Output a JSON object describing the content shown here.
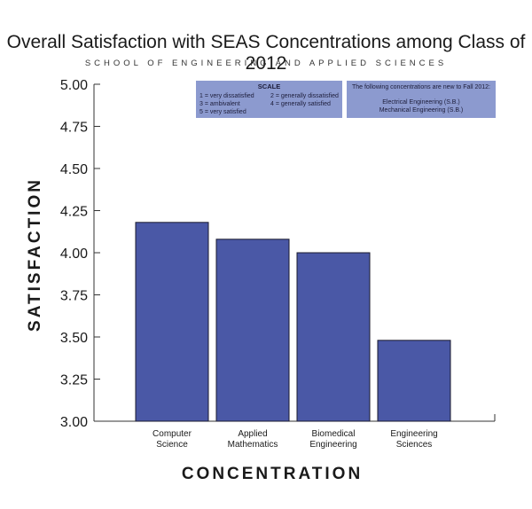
{
  "title": "Overall Satisfaction with SEAS Concentrations among Class of 2012",
  "subtitle": "SCHOOL OF ENGINEERING AND APPLIED SCIENCES",
  "scale_box": {
    "title": "SCALE",
    "items": [
      "1 = very dissatisfied",
      "2 = generally dissatisfied",
      "3 = ambivalent",
      "4 = generally satisfied",
      "5 = very satisfied"
    ]
  },
  "new_box": {
    "lines": [
      "The following concentrations are new to Fall 2012:",
      "Electrical Engineering (S.B.)",
      "Mechanical Engineering (S.B.)"
    ]
  },
  "colors": {
    "bar": "#4a58a6",
    "bar_stroke": "#1a1a2e",
    "legend_bg": "#8c9acf"
  },
  "chart_data": {
    "type": "bar",
    "categories": [
      [
        "Computer",
        "Science"
      ],
      [
        "Applied",
        "Mathematics"
      ],
      [
        "Biomedical",
        "Engineering"
      ],
      [
        "Engineering",
        "Sciences"
      ]
    ],
    "values": [
      4.18,
      4.08,
      4.0,
      3.48
    ],
    "xlabel": "CONCENTRATION",
    "ylabel": "SATISFACTION",
    "ylim": [
      3.0,
      5.0
    ],
    "yticks": [
      "3.00",
      "3.25",
      "3.50",
      "3.75",
      "4.00",
      "4.25",
      "4.50",
      "4.75",
      "5.00"
    ],
    "grid": false,
    "legend": "none"
  }
}
